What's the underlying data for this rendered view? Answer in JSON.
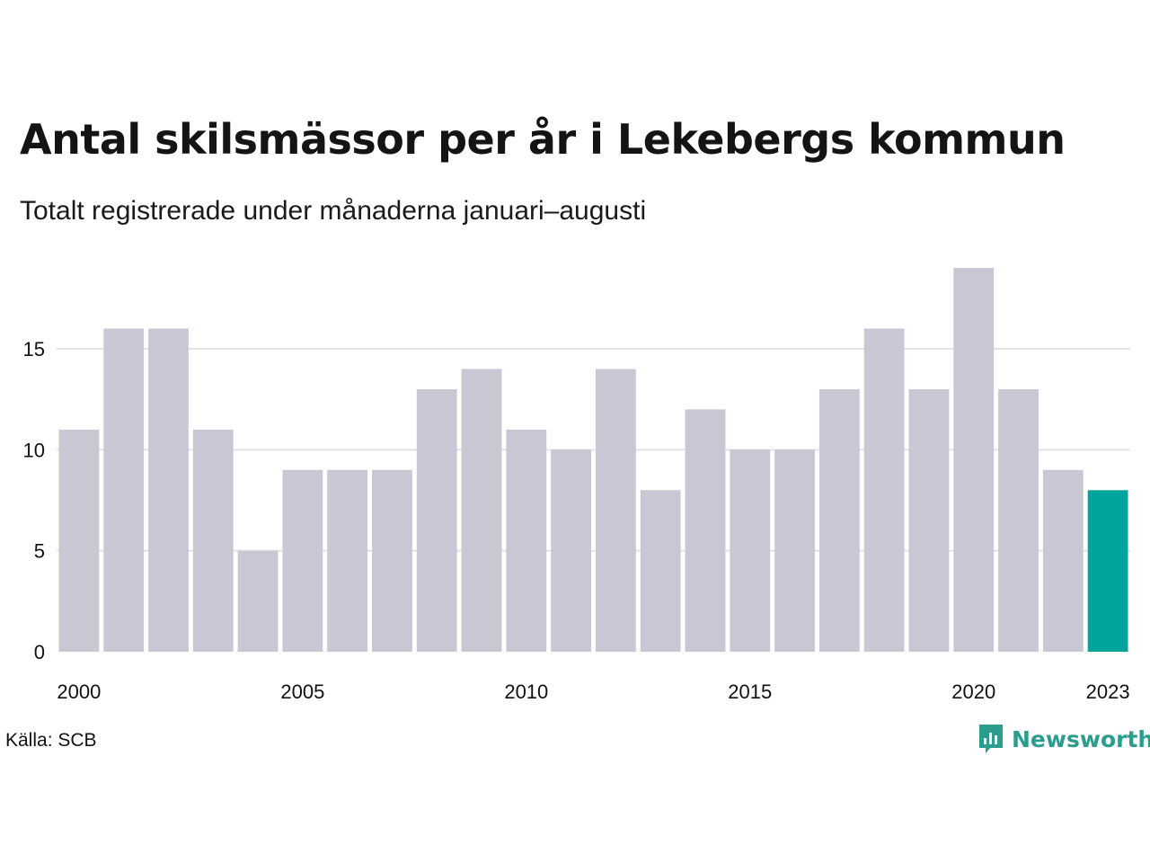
{
  "title": "Antal skilsmässor per år i Lekebergs kommun",
  "subtitle": "Totalt registrerade under månaderna januari–augusti",
  "source": "Källa: SCB",
  "brand": "Newsworthy",
  "colors": {
    "bar": "#c8c7d3",
    "highlight": "#00a49a",
    "grid": "#e3e3e3",
    "brand": "#2a9d8f"
  },
  "icons": {
    "logo": "bar-chart-speech-bubble-icon"
  },
  "chart_data": {
    "type": "bar",
    "x": [
      2000,
      2001,
      2002,
      2003,
      2004,
      2005,
      2006,
      2007,
      2008,
      2009,
      2010,
      2011,
      2012,
      2013,
      2014,
      2015,
      2016,
      2017,
      2018,
      2019,
      2020,
      2021,
      2022,
      2023
    ],
    "values": [
      11,
      16,
      16,
      11,
      5,
      9,
      9,
      9,
      13,
      14,
      11,
      10,
      14,
      8,
      12,
      10,
      10,
      13,
      16,
      13,
      19,
      13,
      9,
      8
    ],
    "highlight": 2023,
    "x_tick_labels": [
      "2000",
      "2005",
      "2010",
      "2015",
      "2020",
      "2023"
    ],
    "y_ticks": [
      0,
      5,
      10,
      15
    ],
    "ylim": [
      0,
      19
    ],
    "grid": true,
    "xlabel": "",
    "ylabel": ""
  }
}
